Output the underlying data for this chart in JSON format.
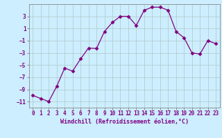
{
  "x": [
    0,
    1,
    2,
    3,
    4,
    5,
    6,
    7,
    8,
    9,
    10,
    11,
    12,
    13,
    14,
    15,
    16,
    17,
    18,
    19,
    20,
    21,
    22,
    23
  ],
  "y": [
    -10,
    -10.5,
    -11,
    -8.5,
    -5.5,
    -6,
    -4,
    -2.2,
    -2.3,
    0.5,
    2,
    3,
    3,
    1.5,
    4,
    4.5,
    4.5,
    4,
    0.5,
    -0.5,
    -3,
    -3.2,
    -1,
    -1.5
  ],
  "line_color": "#800080",
  "marker": "D",
  "marker_size": 2.5,
  "bg_color": "#cceeff",
  "grid_color": "#b0c8c8",
  "xlabel": "Windchill (Refroidissement éolien,°C)",
  "xlabel_fontsize": 6.0,
  "tick_fontsize": 5.5,
  "ylim": [
    -12,
    5
  ],
  "xlim": [
    -0.5,
    23.5
  ],
  "yticks": [
    -11,
    -9,
    -7,
    -5,
    -3,
    -1,
    1,
    3
  ],
  "xticks": [
    0,
    1,
    2,
    3,
    4,
    5,
    6,
    7,
    8,
    9,
    10,
    11,
    12,
    13,
    14,
    15,
    16,
    17,
    18,
    19,
    20,
    21,
    22,
    23
  ]
}
